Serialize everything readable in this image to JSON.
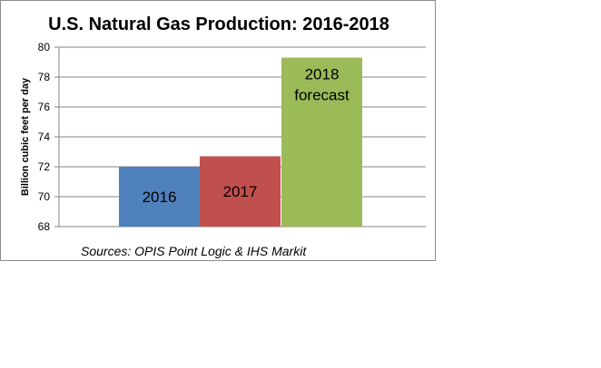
{
  "chart_data": {
    "type": "bar",
    "title": "U.S. Natural Gas Production:  2016-2018",
    "ylabel": "Billion cubic feet per day",
    "xlabel": "",
    "ylim": [
      68,
      80
    ],
    "yticks": [
      "68",
      "70",
      "72",
      "74",
      "76",
      "78",
      "80"
    ],
    "grid": true,
    "categories": [
      "2016",
      "2017",
      "2018 forecast"
    ],
    "values": [
      72.0,
      72.7,
      79.3
    ],
    "bar_labels": [
      [
        "2016"
      ],
      [
        "2017"
      ],
      [
        "2018",
        "forecast"
      ]
    ],
    "colors": [
      "#4f81bd",
      "#c0504d",
      "#9bbb59"
    ],
    "source": "Sources: OPIS Point Logic & IHS Markit"
  }
}
